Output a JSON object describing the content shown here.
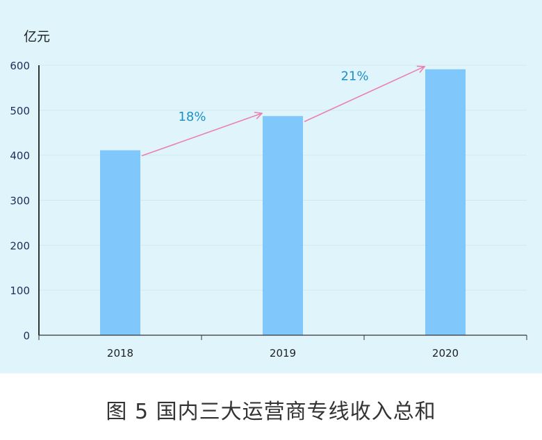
{
  "chart_data": {
    "type": "bar",
    "ylabel": "亿元",
    "categories": [
      "2018",
      "2019",
      "2020"
    ],
    "values": [
      411,
      487,
      591
    ],
    "ylim": [
      0,
      600
    ],
    "yticks": [
      "0",
      "100",
      "200",
      "300",
      "400",
      "500",
      "600"
    ],
    "grid": true,
    "growth_annotations": [
      {
        "from": "2018",
        "to": "2019",
        "label": "18%"
      },
      {
        "from": "2019",
        "to": "2020",
        "label": "21%"
      }
    ]
  },
  "colors": {
    "background": "#dff4fb",
    "bar": "#80c7fc",
    "arrow": "#ec7fb0",
    "annotation_text": "#1d8fc6",
    "axis": "#333333",
    "tick_text": "#1f2d5a"
  },
  "caption": "图 5   国内三大运营商专线收入总和"
}
